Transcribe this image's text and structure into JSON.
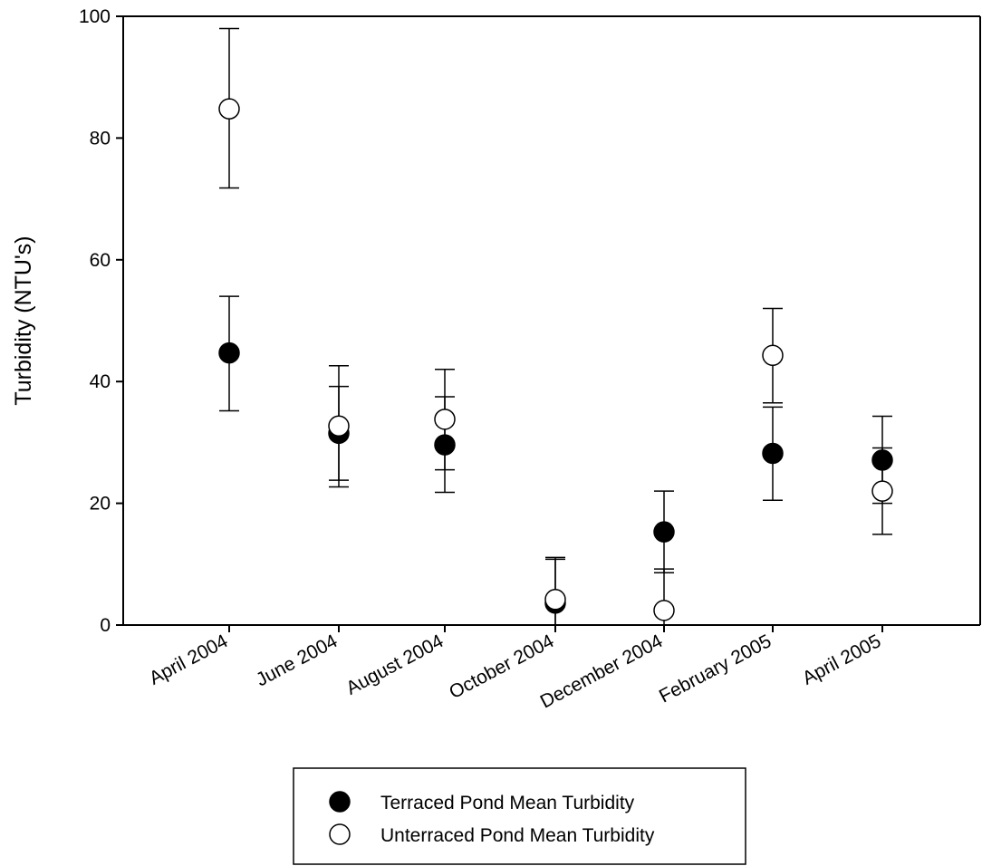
{
  "chart_data": {
    "type": "scatter",
    "ylabel": "Turbidity (NTU's)",
    "xlabel": "",
    "ylim": [
      0,
      100
    ],
    "yticks": [
      0,
      20,
      40,
      60,
      80,
      100
    ],
    "categories": [
      "April 2004",
      "June 2004",
      "August 2004",
      "October 2004",
      "December 2004",
      "February 2005",
      "April 2005"
    ],
    "grid": false,
    "legend_position": "bottom-center",
    "series": [
      {
        "name": "Terraced Pond Mean Turbidity",
        "marker": "filled-circle",
        "color": "#000000",
        "values": [
          44.7,
          31.5,
          29.6,
          3.6,
          15.3,
          28.2,
          27.1
        ],
        "error_low": [
          35.2,
          23.8,
          21.8,
          0,
          8.6,
          20.5,
          20.0
        ],
        "error_high": [
          54.0,
          39.2,
          37.5,
          10.8,
          22.0,
          35.8,
          34.3
        ]
      },
      {
        "name": "Unterraced Pond Mean Turbidity",
        "marker": "open-circle",
        "color": "#ffffff",
        "values": [
          84.8,
          32.7,
          33.8,
          4.2,
          2.4,
          44.3,
          22.0
        ],
        "error_low": [
          71.8,
          22.7,
          25.5,
          0,
          0,
          36.5,
          14.9
        ],
        "error_high": [
          98.0,
          42.6,
          42.0,
          11.1,
          9.2,
          52.0,
          29.1
        ]
      }
    ]
  }
}
